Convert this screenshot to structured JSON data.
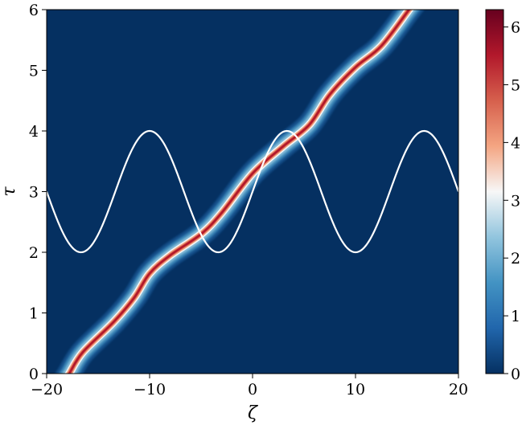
{
  "chart_data": {
    "type": "heatmap",
    "title": "",
    "xlabel": "ζ",
    "ylabel": "τ",
    "xlim": [
      -20,
      20
    ],
    "ylim": [
      0,
      6
    ],
    "x_ticks": [
      -20,
      -10,
      0,
      10,
      20
    ],
    "x_tick_labels": [
      "−20",
      "−10",
      "0",
      "10",
      "20"
    ],
    "y_ticks": [
      0,
      1,
      2,
      3,
      4,
      5,
      6
    ],
    "y_tick_labels": [
      "0",
      "1",
      "2",
      "3",
      "4",
      "5",
      "6"
    ],
    "colorbar": {
      "range": [
        0,
        6.3
      ],
      "ticks": [
        0,
        1,
        2,
        3,
        4,
        5,
        6
      ],
      "tick_labels": [
        "0",
        "1",
        "2",
        "3",
        "4",
        "5",
        "6"
      ],
      "colormap": "RdBu_r",
      "colors": [
        "#053061",
        "#2166ac",
        "#4393c3",
        "#92c5de",
        "#f7f7f7",
        "#f4a582",
        "#d6604d",
        "#b2182b",
        "#67001f"
      ]
    },
    "heatmap_ridge": {
      "description_values": "peak intensity ridge (ζ, τ) in data units",
      "points": [
        {
          "x": -17.8,
          "y": 0.0
        },
        {
          "x": -16.5,
          "y": 0.35
        },
        {
          "x": -13.5,
          "y": 0.85
        },
        {
          "x": -11.5,
          "y": 1.25
        },
        {
          "x": -10.0,
          "y": 1.65
        },
        {
          "x": -8.0,
          "y": 1.95
        },
        {
          "x": -5.0,
          "y": 2.3
        },
        {
          "x": -3.0,
          "y": 2.65
        },
        {
          "x": 0.0,
          "y": 3.3
        },
        {
          "x": 3.0,
          "y": 3.75
        },
        {
          "x": 5.5,
          "y": 4.1
        },
        {
          "x": 7.5,
          "y": 4.6
        },
        {
          "x": 10.0,
          "y": 5.05
        },
        {
          "x": 12.5,
          "y": 5.4
        },
        {
          "x": 15.2,
          "y": 6.0
        }
      ],
      "peak_value": 6.3,
      "background_value": 0.0
    },
    "overlay_curve": {
      "type": "line",
      "color": "#ffffff",
      "formula": "τ = 3 − sin(2π(ζ+20)/13.33)",
      "x": [
        -20,
        -16.67,
        -13.33,
        -10,
        -6.67,
        -3.33,
        0,
        3.33,
        6.67,
        10,
        13.33,
        16.67,
        20
      ],
      "y": [
        3,
        2,
        3,
        4,
        3,
        2,
        3,
        4,
        3,
        2,
        3,
        4,
        3
      ]
    },
    "grid": false
  }
}
